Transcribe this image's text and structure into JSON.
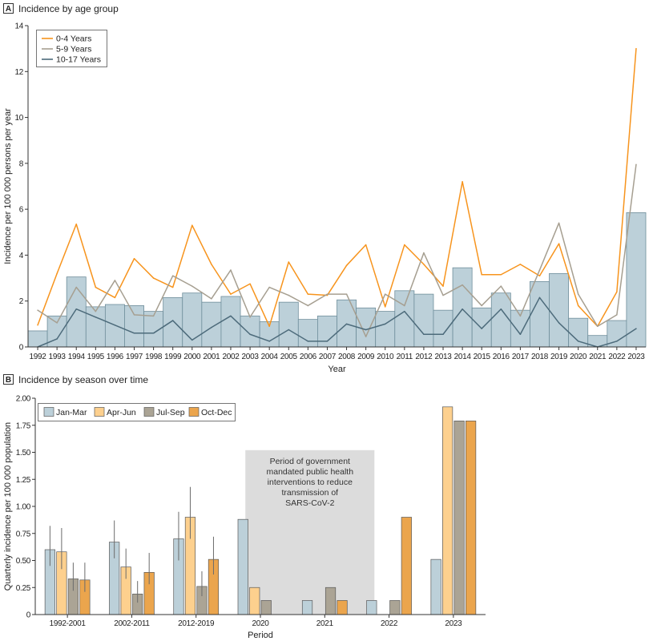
{
  "figure": {
    "panel_labels": [
      "A",
      "B"
    ]
  },
  "colors": {
    "bar": "#bcd0d9",
    "bar_stroke": "#6f8e9b",
    "bar_b_stroke": "#5a5a5a",
    "axis": "#333333",
    "shade": "#dcdcdc",
    "error_bar": "#6b6b6b",
    "legend_border": "#555555"
  },
  "chart_data": [
    {
      "type": "bar+line",
      "title": "Incidence by age group",
      "xlabel": "Year",
      "ylabel": "Incidence per 100 000 persons per year",
      "ylim": [
        0,
        14
      ],
      "yticks": [
        0,
        2,
        4,
        6,
        8,
        10,
        12,
        14
      ],
      "ytick_labels": [
        "0",
        "2",
        "4",
        "6",
        "8",
        "10",
        "12",
        "14"
      ],
      "categories": [
        "1992",
        "1993",
        "1994",
        "1995",
        "1996",
        "1997",
        "1998",
        "1999",
        "2000",
        "2001",
        "2002",
        "2003",
        "2004",
        "2005",
        "2006",
        "2007",
        "2008",
        "2009",
        "2010",
        "2011",
        "2012",
        "2013",
        "2014",
        "2015",
        "2016",
        "2017",
        "2018",
        "2019",
        "2020",
        "2021",
        "2022",
        "2023"
      ],
      "bar_values": [
        0.7,
        1.35,
        3.05,
        1.75,
        1.85,
        1.8,
        1.55,
        2.15,
        2.35,
        1.95,
        2.2,
        1.35,
        1.1,
        1.95,
        1.2,
        1.35,
        2.05,
        1.7,
        1.55,
        2.45,
        2.3,
        1.6,
        3.45,
        1.7,
        2.35,
        1.6,
        2.85,
        3.2,
        1.25,
        0.5,
        1.15,
        5.85
      ],
      "series": [
        {
          "name": "0-4 Years",
          "color": "#f7941d",
          "values": [
            0.95,
            3.2,
            5.35,
            2.6,
            2.15,
            3.85,
            3.0,
            2.6,
            5.3,
            3.6,
            2.3,
            2.75,
            0.9,
            3.7,
            2.3,
            2.25,
            3.55,
            4.45,
            1.75,
            4.45,
            3.6,
            2.65,
            7.2,
            3.15,
            3.15,
            3.6,
            3.1,
            4.5,
            1.8,
            0.9,
            2.4,
            13.0
          ]
        },
        {
          "name": "5-9 Years",
          "color": "#a69f91",
          "values": [
            1.6,
            1.05,
            2.6,
            1.55,
            2.9,
            1.4,
            1.35,
            3.1,
            2.65,
            2.1,
            3.35,
            1.3,
            2.6,
            2.25,
            1.8,
            2.3,
            2.3,
            0.45,
            2.3,
            1.8,
            4.1,
            2.25,
            2.7,
            1.8,
            2.65,
            1.35,
            3.35,
            5.4,
            2.3,
            0.9,
            1.4,
            7.95
          ]
        },
        {
          "name": "10-17 Years",
          "color": "#4d6b7b",
          "values": [
            0.0,
            0.35,
            1.65,
            1.3,
            0.95,
            0.6,
            0.6,
            1.15,
            0.3,
            0.85,
            1.35,
            0.55,
            0.25,
            0.75,
            0.25,
            0.25,
            1.0,
            0.75,
            1.0,
            1.55,
            0.55,
            0.55,
            1.65,
            0.8,
            1.65,
            0.55,
            2.15,
            1.05,
            0.25,
            0.0,
            0.25,
            0.8
          ]
        }
      ],
      "legend_position": "top-left",
      "grid": false
    },
    {
      "type": "bar",
      "title": "Incidence by season over time",
      "xlabel": "Period",
      "ylabel": "Quarterly incidence per 100 000 population",
      "ylim": [
        0,
        2
      ],
      "yticks": [
        0,
        0.25,
        0.5,
        0.75,
        1.0,
        1.25,
        1.5,
        1.75,
        2.0
      ],
      "ytick_labels": [
        "0",
        "0.25",
        "0.50",
        "0.75",
        "1.00",
        "1.25",
        "1.50",
        "1.75",
        "2.00"
      ],
      "categories": [
        "1992-2001",
        "2002-2011",
        "2012-2019",
        "2020",
        "2021",
        "2022",
        "2023"
      ],
      "series": [
        {
          "name": "Jan-Mar",
          "color": "#bcd0d9",
          "values": [
            0.6,
            0.67,
            0.7,
            0.88,
            0.13,
            0.13,
            0.51
          ],
          "ci_low": [
            0.45,
            0.52,
            0.5,
            null,
            null,
            null,
            null
          ],
          "ci_high": [
            0.82,
            0.87,
            0.95,
            null,
            null,
            null,
            null
          ]
        },
        {
          "name": "Apr-Jun",
          "color": "#fdd08e",
          "values": [
            0.58,
            0.44,
            0.9,
            0.25,
            0,
            0,
            1.92
          ],
          "ci_low": [
            0.42,
            0.33,
            0.7,
            null,
            null,
            null,
            null
          ],
          "ci_high": [
            0.8,
            0.61,
            1.18,
            null,
            null,
            null,
            null
          ]
        },
        {
          "name": "Jul-Sep",
          "color": "#aba495",
          "values": [
            0.33,
            0.19,
            0.26,
            0.13,
            0.25,
            0.13,
            1.79
          ],
          "ci_low": [
            0.22,
            0.11,
            0.17,
            null,
            null,
            null,
            null
          ],
          "ci_high": [
            0.48,
            0.31,
            0.4,
            null,
            null,
            null,
            null
          ]
        },
        {
          "name": "Oct-Dec",
          "color": "#eba54d",
          "values": [
            0.32,
            0.39,
            0.51,
            0,
            0.13,
            0.9,
            1.79
          ],
          "ci_low": [
            0.21,
            0.28,
            0.37,
            null,
            null,
            null,
            null
          ],
          "ci_high": [
            0.48,
            0.57,
            0.72,
            null,
            null,
            null,
            null
          ]
        }
      ],
      "annotation": {
        "text_lines": [
          "Period of government",
          "mandated public health",
          "interventions to reduce",
          "transmission of",
          "SARS-CoV-2"
        ],
        "from": {
          "category_index": 3,
          "series_index": 0
        },
        "to": {
          "category_index": 5,
          "series_index": 0
        }
      },
      "legend_position": "top-left",
      "grid": false
    }
  ]
}
